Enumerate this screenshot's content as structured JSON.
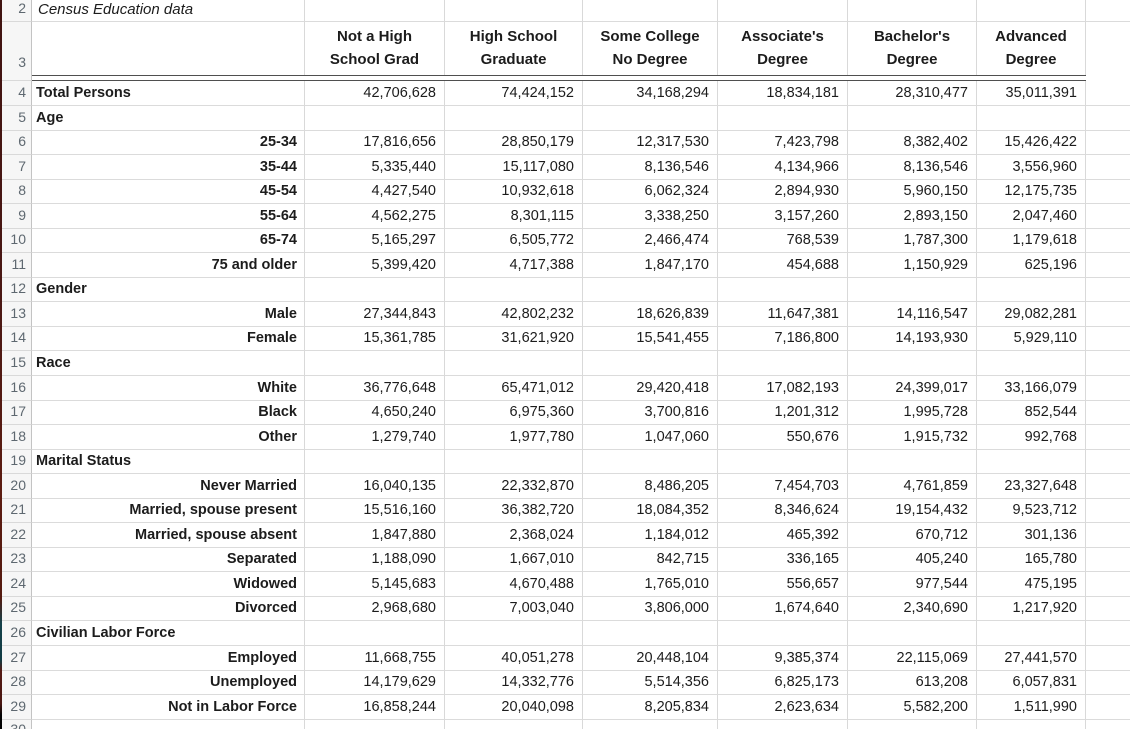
{
  "sheet": {
    "app": "spreadsheet",
    "title": "Census Education data",
    "colors": {
      "gridline": "#d9d9d9",
      "header_rule": "#4f4f4f",
      "row_header_bg": "#f6f6f6",
      "row_header_text": "#5e6870",
      "cell_text": "#1c1c1c"
    },
    "columns": [
      {
        "line1": "Not a High",
        "line2": "School Grad"
      },
      {
        "line1": "High School",
        "line2": "Graduate"
      },
      {
        "line1": "Some College",
        "line2": "No Degree"
      },
      {
        "line1": "Associate's",
        "line2": "Degree"
      },
      {
        "line1": "Bachelor's",
        "line2": "Degree"
      },
      {
        "line1": "Advanced",
        "line2": "Degree"
      }
    ],
    "rows": [
      {
        "num": "2",
        "type": "title",
        "label": "Census Education data",
        "values": [
          "",
          "",
          "",
          "",
          "",
          ""
        ]
      },
      {
        "num": "3",
        "type": "header",
        "label": "",
        "values": [
          "",
          "",
          "",
          "",
          "",
          ""
        ]
      },
      {
        "num": "4",
        "type": "total",
        "label": "Total Persons",
        "values": [
          "42,706,628",
          "74,424,152",
          "34,168,294",
          "18,834,181",
          "28,310,477",
          "35,011,391"
        ]
      },
      {
        "num": "5",
        "type": "section",
        "label": "Age",
        "values": [
          "",
          "",
          "",
          "",
          "",
          ""
        ]
      },
      {
        "num": "6",
        "type": "item",
        "label": "25-34",
        "values": [
          "17,816,656",
          "28,850,179",
          "12,317,530",
          "7,423,798",
          "8,382,402",
          "15,426,422"
        ]
      },
      {
        "num": "7",
        "type": "item",
        "label": "35-44",
        "values": [
          "5,335,440",
          "15,117,080",
          "8,136,546",
          "4,134,966",
          "8,136,546",
          "3,556,960"
        ]
      },
      {
        "num": "8",
        "type": "item",
        "label": "45-54",
        "values": [
          "4,427,540",
          "10,932,618",
          "6,062,324",
          "2,894,930",
          "5,960,150",
          "12,175,735"
        ]
      },
      {
        "num": "9",
        "type": "item",
        "label": "55-64",
        "values": [
          "4,562,275",
          "8,301,115",
          "3,338,250",
          "3,157,260",
          "2,893,150",
          "2,047,460"
        ]
      },
      {
        "num": "10",
        "type": "item",
        "label": "65-74",
        "values": [
          "5,165,297",
          "6,505,772",
          "2,466,474",
          "768,539",
          "1,787,300",
          "1,179,618"
        ]
      },
      {
        "num": "11",
        "type": "item",
        "label": "75 and older",
        "values": [
          "5,399,420",
          "4,717,388",
          "1,847,170",
          "454,688",
          "1,150,929",
          "625,196"
        ]
      },
      {
        "num": "12",
        "type": "section",
        "label": "Gender",
        "values": [
          "",
          "",
          "",
          "",
          "",
          ""
        ]
      },
      {
        "num": "13",
        "type": "item",
        "label": "Male",
        "values": [
          "27,344,843",
          "42,802,232",
          "18,626,839",
          "11,647,381",
          "14,116,547",
          "29,082,281"
        ]
      },
      {
        "num": "14",
        "type": "item",
        "label": "Female",
        "values": [
          "15,361,785",
          "31,621,920",
          "15,541,455",
          "7,186,800",
          "14,193,930",
          "5,929,110"
        ]
      },
      {
        "num": "15",
        "type": "section",
        "label": "Race",
        "values": [
          "",
          "",
          "",
          "",
          "",
          ""
        ]
      },
      {
        "num": "16",
        "type": "item",
        "label": "White",
        "values": [
          "36,776,648",
          "65,471,012",
          "29,420,418",
          "17,082,193",
          "24,399,017",
          "33,166,079"
        ]
      },
      {
        "num": "17",
        "type": "item",
        "label": "Black",
        "values": [
          "4,650,240",
          "6,975,360",
          "3,700,816",
          "1,201,312",
          "1,995,728",
          "852,544"
        ]
      },
      {
        "num": "18",
        "type": "item",
        "label": "Other",
        "values": [
          "1,279,740",
          "1,977,780",
          "1,047,060",
          "550,676",
          "1,915,732",
          "992,768"
        ]
      },
      {
        "num": "19",
        "type": "section",
        "label": "Marital Status",
        "values": [
          "",
          "",
          "",
          "",
          "",
          ""
        ]
      },
      {
        "num": "20",
        "type": "item",
        "label": "Never Married",
        "values": [
          "16,040,135",
          "22,332,870",
          "8,486,205",
          "7,454,703",
          "4,761,859",
          "23,327,648"
        ]
      },
      {
        "num": "21",
        "type": "item",
        "label": "Married, spouse present",
        "values": [
          "15,516,160",
          "36,382,720",
          "18,084,352",
          "8,346,624",
          "19,154,432",
          "9,523,712"
        ]
      },
      {
        "num": "22",
        "type": "item",
        "label": "Married, spouse absent",
        "values": [
          "1,847,880",
          "2,368,024",
          "1,184,012",
          "465,392",
          "670,712",
          "301,136"
        ]
      },
      {
        "num": "23",
        "type": "item",
        "label": "Separated",
        "values": [
          "1,188,090",
          "1,667,010",
          "842,715",
          "336,165",
          "405,240",
          "165,780"
        ]
      },
      {
        "num": "24",
        "type": "item",
        "label": "Widowed",
        "values": [
          "5,145,683",
          "4,670,488",
          "1,765,010",
          "556,657",
          "977,544",
          "475,195"
        ]
      },
      {
        "num": "25",
        "type": "item",
        "label": "Divorced",
        "values": [
          "2,968,680",
          "7,003,040",
          "3,806,000",
          "1,674,640",
          "2,340,690",
          "1,217,920"
        ]
      },
      {
        "num": "26",
        "type": "section",
        "label": "Civilian Labor Force",
        "values": [
          "",
          "",
          "",
          "",
          "",
          ""
        ]
      },
      {
        "num": "27",
        "type": "item",
        "label": "Employed",
        "values": [
          "11,668,755",
          "40,051,278",
          "20,448,104",
          "9,385,374",
          "22,115,069",
          "27,441,570"
        ]
      },
      {
        "num": "28",
        "type": "item",
        "label": "Unemployed",
        "values": [
          "14,179,629",
          "14,332,776",
          "5,514,356",
          "6,825,173",
          "613,208",
          "6,057,831"
        ]
      },
      {
        "num": "29",
        "type": "item",
        "label": "Not in Labor Force",
        "values": [
          "16,858,244",
          "20,040,098",
          "8,205,834",
          "2,623,634",
          "5,582,200",
          "1,511,990"
        ]
      },
      {
        "num": "30",
        "type": "partial",
        "label": "",
        "values": [
          "",
          "",
          "",
          "",
          "",
          ""
        ]
      }
    ]
  }
}
